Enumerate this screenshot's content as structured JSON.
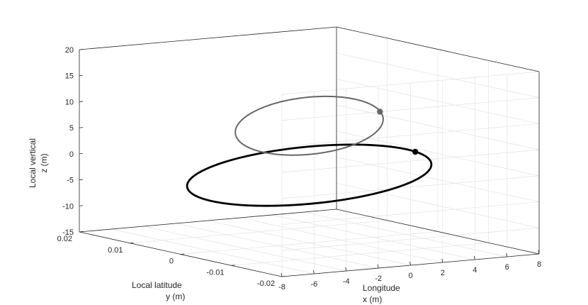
{
  "chart_data": {
    "type": "line3d",
    "title": "",
    "axes": {
      "x": {
        "label_line1": "Longitude",
        "label_line2": "x (m)",
        "range": [
          -8,
          8
        ],
        "ticks": [
          -8,
          -6,
          -4,
          -2,
          0,
          2,
          4,
          6,
          8
        ],
        "tick_labels": [
          "-8",
          "-6",
          "-4",
          "-2",
          "0",
          "2",
          "4",
          "6",
          "8"
        ]
      },
      "y": {
        "label_line1": "Local latitude",
        "label_line2": "y (m)",
        "range": [
          -0.02,
          0.02
        ],
        "ticks": [
          0.02,
          0.01,
          0,
          -0.01,
          -0.02
        ],
        "tick_labels": [
          "0.02",
          "0.01",
          "0",
          "-0.01",
          "-0.02"
        ]
      },
      "z": {
        "label_line1": "Local vertical",
        "label_line2": "z (m)",
        "range": [
          -15,
          20
        ],
        "ticks": [
          -15,
          -10,
          -5,
          0,
          5,
          10,
          15,
          20
        ],
        "tick_labels": [
          "-15",
          "-10",
          "-5",
          "0",
          "5",
          "10",
          "15",
          "20"
        ]
      }
    },
    "grid": true,
    "series": [
      {
        "color": "#000000",
        "line_width": 2.8,
        "ellipse": {
          "center": [
            0,
            0,
            -2
          ],
          "x_semi": 7.6,
          "z_semi": 5.5,
          "y": 0
        },
        "marker": {
          "x": 6.6,
          "z": 0.7
        }
      },
      {
        "color": "#666666",
        "line_width": 2.0,
        "ellipse": {
          "center": [
            0,
            0,
            7.5
          ],
          "x_semi": 4.6,
          "z_semi": 5.5,
          "y": 0
        },
        "marker": {
          "x": 4.4,
          "z": 9.0
        }
      }
    ]
  }
}
